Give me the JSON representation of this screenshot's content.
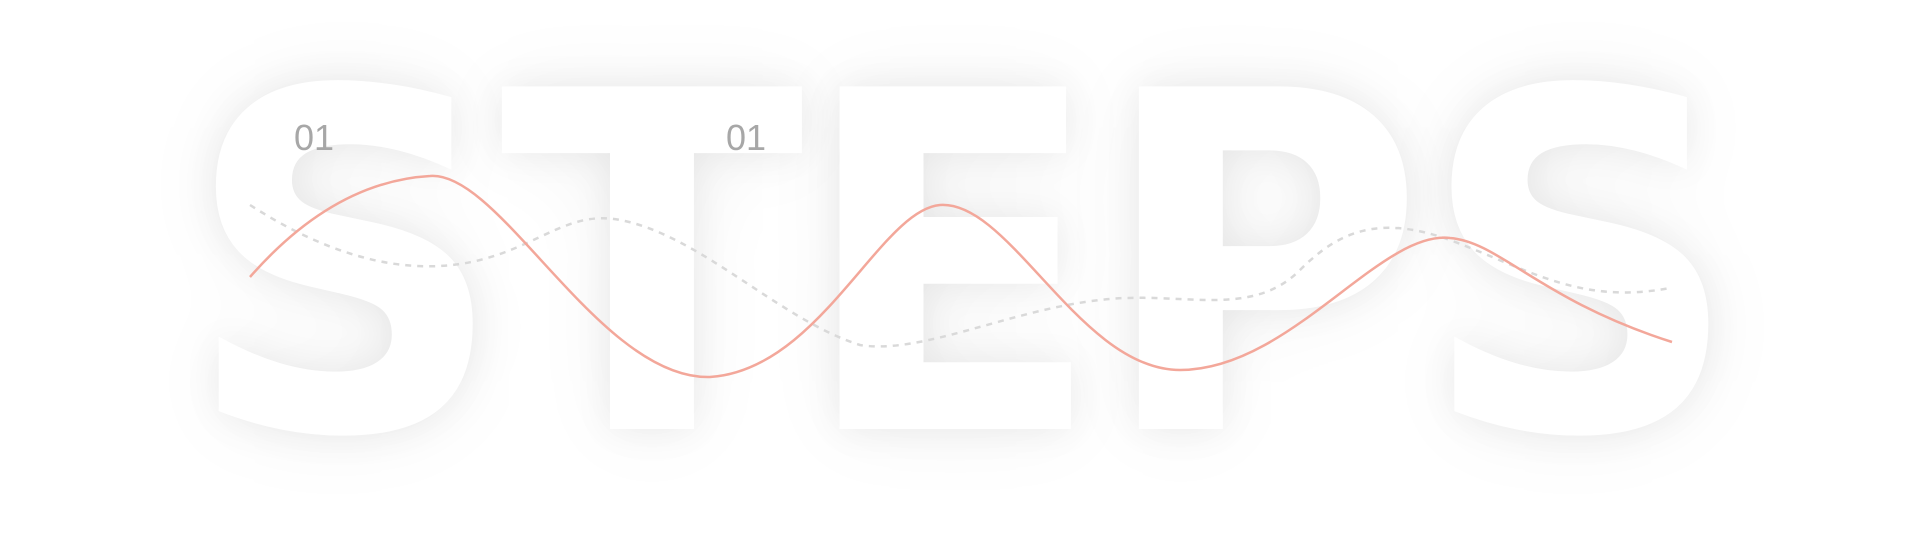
{
  "background_word": "STEPS",
  "steps": [
    {
      "number": "01"
    },
    {
      "number": "01"
    }
  ],
  "colors": {
    "accent_line": "#f3a79a",
    "dashed_line": "#d9d9d9",
    "number_text": "#a7a7a7",
    "background": "#ffffff"
  }
}
